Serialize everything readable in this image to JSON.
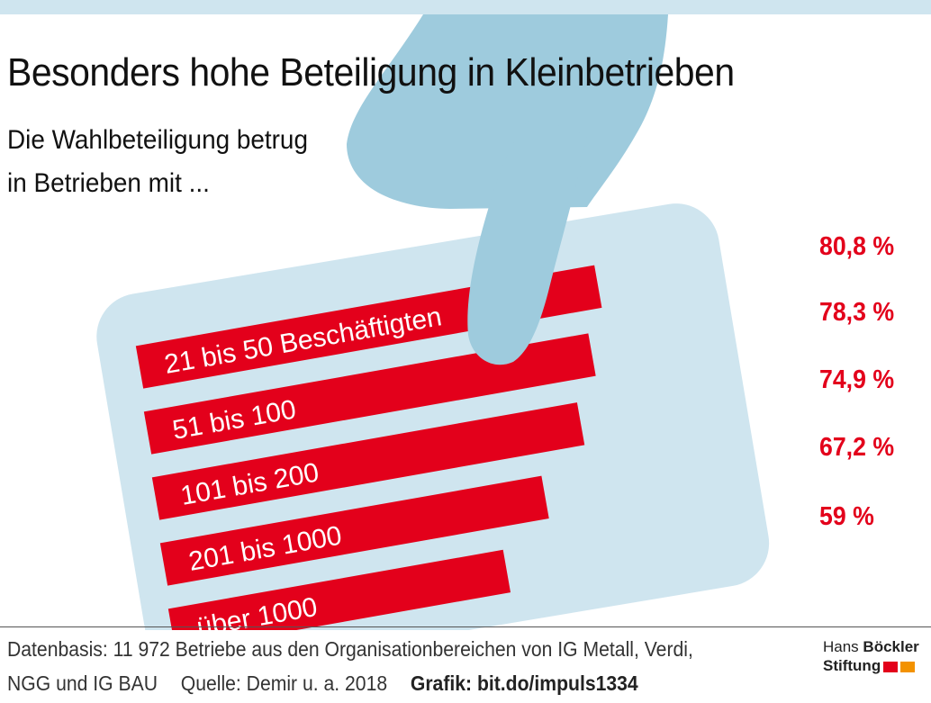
{
  "header": {
    "title": "Besonders hohe Beteiligung in Kleinbetrieben",
    "subtitle_line1": "Die Wahlbeteiligung betrug",
    "subtitle_line2": "in Betrieben mit ..."
  },
  "colors": {
    "bar": "#e3001b",
    "card": "#cfe5ef",
    "hand": "#9ecbdd",
    "logo_red": "#e3001b",
    "logo_orange": "#f39200"
  },
  "chart_data": {
    "type": "bar",
    "orientation": "horizontal",
    "title": "Besonders hohe Beteiligung in Kleinbetrieben",
    "subtitle": "Die Wahlbeteiligung betrug in Betrieben mit ...",
    "categories": [
      "21 bis 50 Beschäftigten",
      "51 bis 100",
      "101 bis 200",
      "201 bis 1000",
      "über 1000"
    ],
    "values": [
      80.8,
      78.3,
      74.9,
      67.2,
      59
    ],
    "value_labels": [
      "80,8 %",
      "78,3 %",
      "74,9 %",
      "67,2 %",
      "59 %"
    ],
    "unit": "%",
    "xlim": [
      0,
      100
    ],
    "grid": false,
    "legend": "none"
  },
  "footer": {
    "line1": "Datenbasis: 11 972 Betriebe aus den Organisationbereichen von IG Metall, Verdi,",
    "line2_part1": "NGG und IG BAU",
    "line2_part2": "Quelle: Demir u. a. 2018",
    "line2_part3": "Grafik: bit.do/impuls1334"
  },
  "logo": {
    "word1": "Hans",
    "word2": "Böckler",
    "word3": "Stiftung"
  }
}
